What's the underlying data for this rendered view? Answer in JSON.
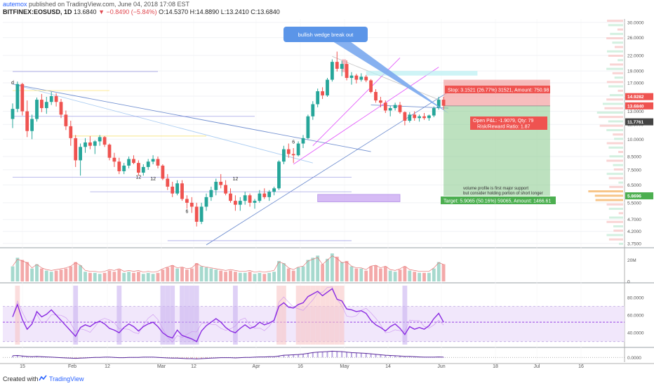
{
  "header": {
    "user": "autemox",
    "published": "published on TradingView.com, June 04, 2018 17:08 EST",
    "symbol": "BITFINEX:EOSUSD, 1D",
    "last": "13.6840",
    "change": "▼ −0.8490 (−5.84%)",
    "ohlc_o": "O:14.5370",
    "ohlc_h": "H:14.8890",
    "ohlc_l": "L:13.2410",
    "ohlc_c": "C:13.6840"
  },
  "footer": {
    "made": "Created with",
    "brand": "TradingView"
  },
  "colors": {
    "up": "#26a69a",
    "down": "#ef5350",
    "volume_up": "#a6d9ce",
    "volume_down": "#f3a9a9",
    "rsi": "#8a2be2",
    "stop": "#f29a9a",
    "target": "#86c98a"
  },
  "chart_data": {
    "type": "candlestick",
    "scale": "log",
    "price_ticks": [
      30.0,
      26.0,
      22.0,
      19.0,
      17.0,
      15.0,
      13.0,
      11.5,
      10.0,
      8.5,
      7.5,
      6.5,
      5.5,
      4.7,
      4.2,
      3.75
    ],
    "price_tick_labels": [
      "30.0000",
      "26.0000",
      "22.0000",
      "19.0000",
      "17.0000",
      "15.0000",
      "13.0000",
      "11.5000",
      "10.0000",
      "8.5000",
      "7.5000",
      "6.5000",
      "5.5000",
      "4.7000",
      "4.2000",
      "3.7500"
    ],
    "price_range": [
      3.65,
      31.0
    ],
    "price_badges": [
      {
        "value": 14.9282,
        "label": "14.9282",
        "color": "#ef5350"
      },
      {
        "value": 13.684,
        "label": "13.6840",
        "color": "#ef5350"
      },
      {
        "value": 11.7761,
        "label": "11.7761",
        "color": "#444444"
      },
      {
        "value": 5.8696,
        "label": "5.8696",
        "color": "#4caf50"
      }
    ],
    "x_ticks": [
      "15",
      "Feb",
      "12",
      "Mar",
      "12",
      "Apr",
      "16",
      "May",
      "14",
      "Jun",
      "18",
      "Jul",
      "16"
    ],
    "annotation_callout": "bullish wedge break out",
    "annotation_note": [
      "volume profile is first major support",
      "but consider holding portion of short longer"
    ],
    "position": {
      "entry": 13.684,
      "stop": 17.5,
      "target": 5.869,
      "stop_label": "Stop: 3.1521 (26.77%) 31521, Amount: 750.98",
      "target_label": "Target: 5.9065 (50.16%) 59065, Amount: 1466.61",
      "pnl_label": "Open P&L: -1.9079, Qty: 79",
      "rr_label": "Risk/Reward Ratio: 1.87"
    },
    "marker_labels": [
      {
        "text": "d",
        "day": 0,
        "price": 16.8
      },
      {
        "text": "12",
        "day": 26,
        "price": 6.9
      },
      {
        "text": "12",
        "day": 29,
        "price": 6.8
      },
      {
        "text": "6",
        "day": 36,
        "price": 5.0
      },
      {
        "text": "12",
        "day": 46,
        "price": 6.8
      },
      {
        "text": "6",
        "day": 58,
        "price": 9.6
      }
    ],
    "volume_ticks": [
      {
        "value": 0,
        "label": "0"
      },
      {
        "value": 20,
        "label": "20M"
      }
    ],
    "rsi_ticks": [
      {
        "value": 40,
        "label": "40.0000"
      },
      {
        "value": 60,
        "label": "60.0000"
      },
      {
        "value": 80,
        "label": "80.0000"
      }
    ],
    "osc_ticks": [
      {
        "value": 0,
        "label": "0.0000"
      }
    ],
    "candles": [
      [
        12.1,
        14.0,
        11.1,
        13.3
      ],
      [
        13.3,
        17.2,
        12.9,
        16.8
      ],
      [
        16.8,
        17.0,
        12.5,
        13.0
      ],
      [
        13.0,
        14.4,
        10.2,
        10.8
      ],
      [
        10.8,
        12.6,
        10.0,
        12.1
      ],
      [
        12.1,
        14.8,
        11.8,
        14.5
      ],
      [
        14.5,
        15.3,
        12.9,
        13.4
      ],
      [
        13.4,
        14.9,
        12.7,
        14.2
      ],
      [
        14.2,
        15.6,
        13.8,
        15.0
      ],
      [
        15.0,
        15.4,
        13.6,
        14.2
      ],
      [
        14.2,
        14.6,
        12.2,
        12.6
      ],
      [
        12.6,
        13.1,
        10.9,
        11.3
      ],
      [
        11.3,
        11.9,
        9.4,
        10.1
      ],
      [
        10.1,
        10.4,
        7.7,
        8.2
      ],
      [
        8.2,
        9.6,
        7.1,
        9.3
      ],
      [
        9.3,
        10.1,
        8.8,
        9.7
      ],
      [
        9.7,
        10.3,
        9.1,
        9.4
      ],
      [
        9.4,
        9.9,
        8.7,
        9.8
      ],
      [
        9.8,
        10.4,
        9.4,
        10.2
      ],
      [
        10.2,
        10.3,
        9.3,
        9.5
      ],
      [
        9.5,
        9.6,
        8.2,
        8.4
      ],
      [
        8.4,
        8.8,
        7.7,
        8.1
      ],
      [
        8.1,
        8.4,
        7.2,
        7.4
      ],
      [
        7.4,
        8.0,
        7.2,
        7.8
      ],
      [
        7.8,
        8.5,
        7.6,
        8.3
      ],
      [
        8.3,
        8.6,
        7.9,
        8.0
      ],
      [
        8.0,
        8.2,
        7.1,
        7.3
      ],
      [
        7.3,
        7.9,
        7.1,
        7.7
      ],
      [
        7.7,
        8.3,
        7.5,
        8.1
      ],
      [
        8.1,
        8.6,
        7.9,
        8.3
      ],
      [
        8.3,
        8.5,
        7.6,
        7.8
      ],
      [
        7.8,
        7.9,
        6.8,
        6.9
      ],
      [
        6.9,
        7.2,
        6.2,
        6.4
      ],
      [
        6.4,
        6.7,
        5.8,
        6.0
      ],
      [
        6.0,
        6.8,
        5.9,
        6.6
      ],
      [
        6.6,
        6.8,
        5.6,
        5.7
      ],
      [
        5.7,
        5.9,
        5.2,
        5.5
      ],
      [
        5.5,
        5.8,
        5.0,
        5.3
      ],
      [
        5.3,
        5.5,
        4.4,
        4.6
      ],
      [
        4.6,
        5.5,
        4.5,
        5.3
      ],
      [
        5.3,
        6.0,
        5.1,
        5.8
      ],
      [
        5.8,
        6.4,
        5.6,
        6.2
      ],
      [
        6.2,
        6.9,
        5.9,
        6.7
      ],
      [
        6.7,
        7.2,
        6.3,
        6.5
      ],
      [
        6.5,
        6.8,
        5.9,
        6.0
      ],
      [
        6.0,
        6.3,
        5.5,
        5.6
      ],
      [
        5.6,
        5.9,
        5.1,
        5.4
      ],
      [
        5.4,
        5.8,
        5.1,
        5.6
      ],
      [
        5.6,
        6.1,
        5.4,
        5.9
      ],
      [
        5.9,
        6.0,
        5.3,
        5.5
      ],
      [
        5.5,
        5.7,
        5.2,
        5.6
      ],
      [
        5.6,
        6.2,
        5.5,
        6.0
      ],
      [
        6.0,
        6.3,
        5.7,
        5.8
      ],
      [
        5.8,
        6.2,
        5.6,
        6.1
      ],
      [
        6.1,
        6.4,
        5.9,
        6.3
      ],
      [
        6.3,
        8.2,
        6.2,
        8.1
      ],
      [
        8.1,
        9.4,
        7.9,
        9.1
      ],
      [
        9.1,
        9.6,
        8.4,
        8.7
      ],
      [
        8.7,
        9.2,
        8.0,
        8.6
      ],
      [
        8.6,
        9.8,
        8.5,
        9.6
      ],
      [
        9.6,
        10.4,
        9.2,
        10.1
      ],
      [
        10.1,
        12.6,
        10.0,
        12.4
      ],
      [
        12.4,
        14.3,
        12.0,
        13.9
      ],
      [
        13.9,
        16.1,
        13.5,
        15.7
      ],
      [
        15.7,
        16.3,
        14.6,
        15.1
      ],
      [
        15.1,
        17.8,
        14.9,
        17.5
      ],
      [
        17.5,
        21.2,
        17.2,
        20.7
      ],
      [
        20.7,
        22.8,
        18.9,
        19.4
      ],
      [
        19.4,
        20.9,
        18.1,
        20.3
      ],
      [
        20.3,
        21.0,
        17.4,
        17.8
      ],
      [
        17.8,
        18.8,
        16.7,
        18.2
      ],
      [
        18.2,
        18.5,
        16.9,
        17.5
      ],
      [
        17.5,
        18.6,
        17.2,
        18.0
      ],
      [
        18.0,
        18.3,
        17.1,
        17.4
      ],
      [
        17.4,
        17.6,
        15.4,
        15.6
      ],
      [
        15.6,
        16.0,
        14.1,
        14.4
      ],
      [
        14.4,
        14.9,
        13.5,
        14.1
      ],
      [
        14.1,
        14.4,
        12.8,
        13.1
      ],
      [
        13.1,
        13.7,
        12.4,
        13.4
      ],
      [
        13.4,
        14.1,
        13.1,
        13.8
      ],
      [
        13.8,
        14.2,
        12.7,
        12.9
      ],
      [
        12.9,
        13.0,
        11.4,
        11.9
      ],
      [
        11.9,
        12.9,
        11.7,
        12.6
      ],
      [
        12.6,
        13.0,
        11.9,
        12.2
      ],
      [
        12.2,
        12.6,
        11.8,
        12.4
      ],
      [
        12.4,
        12.8,
        12.0,
        12.2
      ],
      [
        12.2,
        12.6,
        11.9,
        12.5
      ],
      [
        12.5,
        13.6,
        12.3,
        13.4
      ],
      [
        13.4,
        14.9,
        13.2,
        14.5
      ],
      [
        14.5,
        14.9,
        13.2,
        13.7
      ]
    ],
    "volume": [
      14,
      22,
      20,
      18,
      12,
      16,
      12,
      10,
      9,
      10,
      11,
      12,
      14,
      18,
      15,
      9,
      8,
      8,
      7,
      8,
      10,
      9,
      11,
      8,
      9,
      8,
      9,
      7,
      8,
      7,
      8,
      11,
      13,
      15,
      12,
      13,
      11,
      12,
      17,
      14,
      13,
      12,
      11,
      10,
      9,
      10,
      9,
      8,
      8,
      9,
      7,
      8,
      7,
      8,
      9,
      19,
      17,
      12,
      10,
      13,
      14,
      20,
      22,
      24,
      16,
      21,
      26,
      23,
      18,
      19,
      14,
      12,
      12,
      10,
      14,
      15,
      12,
      14,
      10,
      9,
      11,
      14,
      10,
      9,
      8,
      8,
      8,
      12,
      18,
      16
    ],
    "rsi": [
      58,
      72,
      55,
      44,
      50,
      64,
      58,
      61,
      66,
      60,
      54,
      48,
      42,
      36,
      46,
      49,
      47,
      51,
      53,
      50,
      45,
      43,
      40,
      46,
      50,
      47,
      42,
      47,
      50,
      52,
      47,
      40,
      36,
      34,
      43,
      37,
      35,
      33,
      30,
      42,
      48,
      52,
      56,
      52,
      46,
      42,
      40,
      45,
      49,
      45,
      47,
      52,
      49,
      51,
      54,
      70,
      74,
      69,
      68,
      72,
      74,
      81,
      84,
      87,
      82,
      86,
      90,
      78,
      76,
      67,
      66,
      64,
      65,
      62,
      54,
      49,
      46,
      42,
      47,
      50,
      45,
      38,
      47,
      44,
      46,
      44,
      48,
      56,
      62,
      52
    ],
    "osc": [
      0.35,
      0.4,
      0.3,
      0.2,
      0.15,
      0.2,
      0.15,
      0.1,
      0.05,
      0.0,
      -0.05,
      -0.1,
      -0.15,
      -0.2,
      -0.15,
      -0.1,
      -0.05,
      0.0,
      0.0,
      0.05,
      0.05,
      0.0,
      -0.05,
      -0.05,
      0.0,
      0.0,
      0.0,
      0.05,
      0.05,
      0.05,
      0.0,
      -0.05,
      -0.1,
      -0.15,
      -0.15,
      -0.2,
      -0.25,
      -0.25,
      -0.3,
      -0.25,
      -0.2,
      -0.15,
      -0.1,
      -0.05,
      -0.05,
      -0.05,
      -0.1,
      -0.05,
      0.0,
      0.0,
      0.05,
      0.1,
      0.1,
      0.15,
      0.15,
      0.3,
      0.45,
      0.5,
      0.55,
      0.6,
      0.7,
      0.85,
      1.0,
      1.1,
      1.15,
      1.2,
      1.3,
      1.25,
      1.2,
      1.1,
      1.0,
      0.95,
      0.9,
      0.85,
      0.75,
      0.65,
      0.55,
      0.45,
      0.4,
      0.35,
      0.3,
      0.2,
      0.2,
      0.15,
      0.1,
      0.05,
      0.05,
      0.05,
      0.1,
      0.05
    ]
  }
}
